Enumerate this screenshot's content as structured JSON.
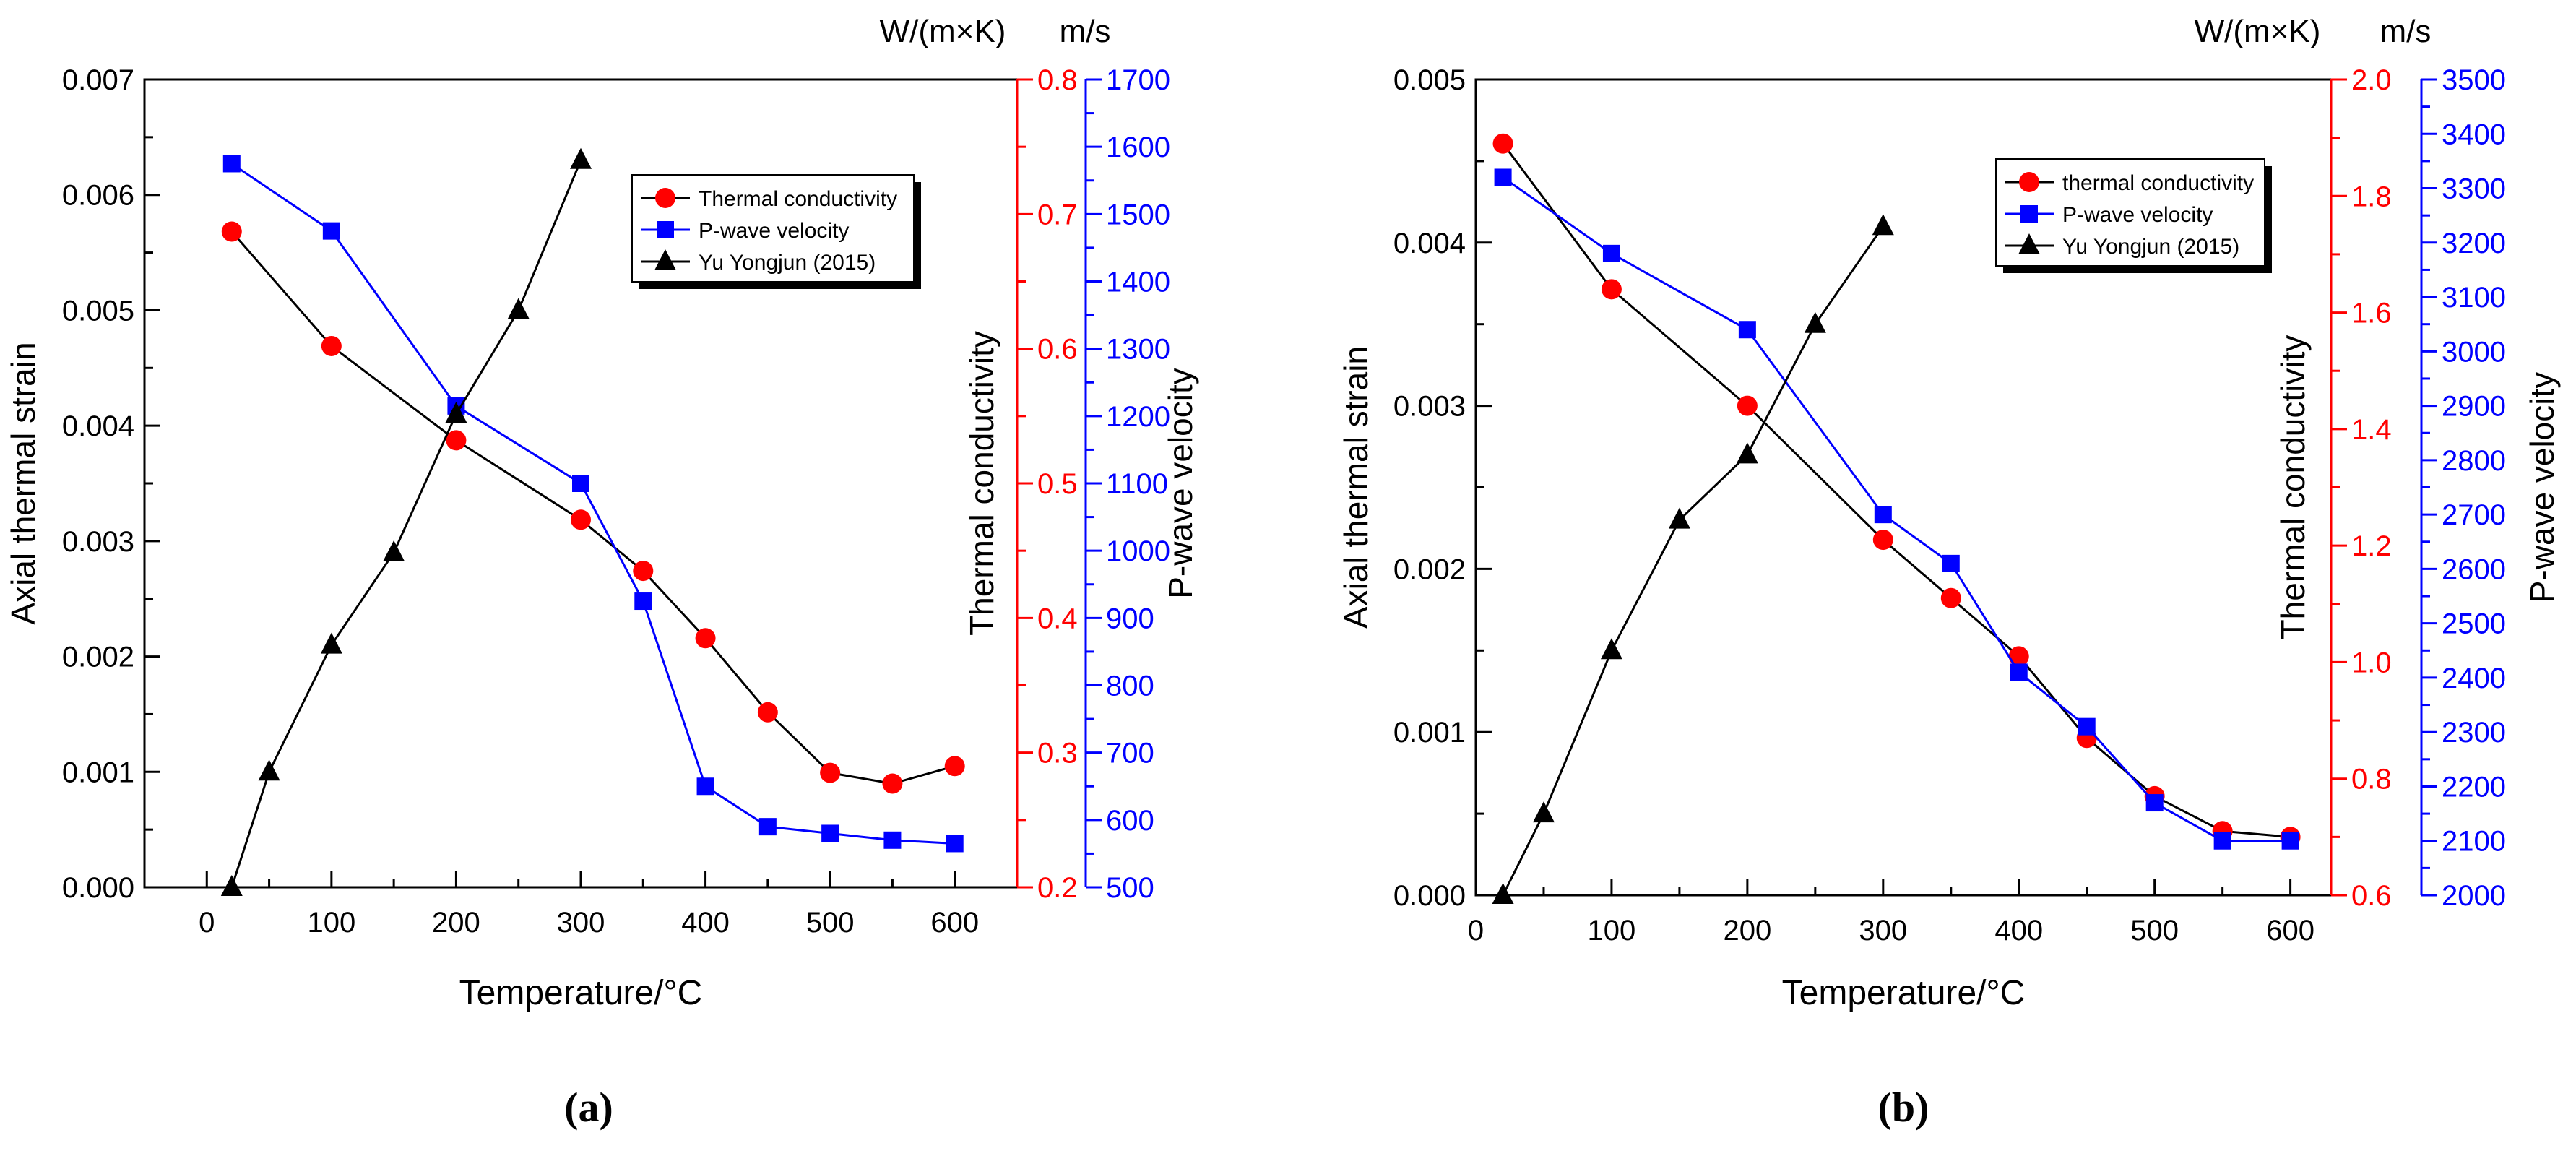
{
  "chart_data": [
    {
      "type": "line",
      "panel_label": "(a)",
      "xlabel": "Temperature/°C",
      "xlim": [
        -50,
        650
      ],
      "xticks": [
        0,
        100,
        200,
        300,
        400,
        500,
        600
      ],
      "axes": {
        "strain": {
          "label": "Axial thermal strain",
          "unit": "",
          "range": [
            0,
            0.007
          ],
          "ticks": [
            "0.000",
            "0.001",
            "0.002",
            "0.003",
            "0.004",
            "0.005",
            "0.006",
            "0.007"
          ],
          "color": "#000000"
        },
        "thermal": {
          "label": "Thermal conductivity",
          "unit": "W/(m×K)",
          "range": [
            0.2,
            0.8
          ],
          "ticks": [
            "0.2",
            "0.3",
            "0.4",
            "0.5",
            "0.6",
            "0.7",
            "0.8"
          ],
          "color": "#ff0000"
        },
        "velocity": {
          "label": "P-wave velocity",
          "unit": "m/s",
          "range": [
            500,
            1700
          ],
          "ticks": [
            "500",
            "600",
            "700",
            "800",
            "900",
            "1000",
            "1100",
            "1200",
            "1300",
            "1400",
            "1500",
            "1600",
            "1700"
          ],
          "color": "#0000ff"
        }
      },
      "series": [
        {
          "name": "Thermal conductivity",
          "axis": "thermal",
          "marker": "circle",
          "line_color": "#000000",
          "marker_color": "#ff0000",
          "x": [
            20,
            100,
            200,
            300,
            350,
            400,
            450,
            500,
            550,
            600
          ],
          "y": [
            0.687,
            0.602,
            0.532,
            0.473,
            0.435,
            0.385,
            0.33,
            0.285,
            0.277,
            0.29
          ]
        },
        {
          "name": "P-wave velocity",
          "axis": "velocity",
          "marker": "square",
          "line_color": "#0000ff",
          "marker_color": "#0000ff",
          "x": [
            20,
            100,
            200,
            300,
            350,
            400,
            450,
            500,
            550,
            600
          ],
          "y": [
            1575,
            1475,
            1215,
            1100,
            925,
            650,
            590,
            580,
            570,
            565
          ]
        },
        {
          "name": "Yu Yongjun (2015)",
          "axis": "strain",
          "marker": "triangle",
          "line_color": "#000000",
          "marker_color": "#000000",
          "x": [
            20,
            50,
            100,
            150,
            200,
            250,
            300
          ],
          "y": [
            0.0,
            0.001,
            0.0021,
            0.0029,
            0.0041,
            0.005,
            0.0063
          ]
        }
      ]
    },
    {
      "type": "line",
      "panel_label": "(b)",
      "xlabel": "Temperature/°C",
      "xlim": [
        0,
        630
      ],
      "xticks": [
        0,
        100,
        200,
        300,
        400,
        500,
        600
      ],
      "axes": {
        "strain": {
          "label": "Axial thermal strain",
          "unit": "",
          "range": [
            0,
            0.005
          ],
          "ticks": [
            "0.000",
            "0.001",
            "0.002",
            "0.003",
            "0.004",
            "0.005"
          ],
          "color": "#000000"
        },
        "thermal": {
          "label": "Thermal conductivity",
          "unit": "W/(m×K)",
          "range": [
            0.6,
            2.0
          ],
          "ticks": [
            "0.6",
            "0.8",
            "1.0",
            "1.2",
            "1.4",
            "1.6",
            "1.8",
            "2.0"
          ],
          "color": "#ff0000"
        },
        "velocity": {
          "label": "P-wave velocity",
          "unit": "m/s",
          "range": [
            2000,
            3500
          ],
          "ticks": [
            "2000",
            "2100",
            "2200",
            "2300",
            "2400",
            "2500",
            "2600",
            "2700",
            "2800",
            "2900",
            "3000",
            "3100",
            "3200",
            "3300",
            "3400",
            "3500"
          ],
          "color": "#0000ff"
        }
      },
      "series": [
        {
          "name": "thermal conductivity",
          "axis": "thermal",
          "marker": "circle",
          "line_color": "#000000",
          "marker_color": "#ff0000",
          "x": [
            20,
            100,
            200,
            300,
            350,
            400,
            450,
            500,
            550,
            600
          ],
          "y": [
            1.89,
            1.64,
            1.44,
            1.21,
            1.11,
            1.01,
            0.87,
            0.77,
            0.71,
            0.7
          ]
        },
        {
          "name": "P-wave velocity",
          "axis": "velocity",
          "marker": "square",
          "line_color": "#0000ff",
          "marker_color": "#0000ff",
          "x": [
            20,
            100,
            200,
            300,
            350,
            400,
            450,
            500,
            550,
            600
          ],
          "y": [
            3320,
            3180,
            3040,
            2700,
            2610,
            2410,
            2310,
            2170,
            2100,
            2100
          ]
        },
        {
          "name": "Yu Yongjun (2015)",
          "axis": "strain",
          "marker": "triangle",
          "line_color": "#000000",
          "marker_color": "#000000",
          "x": [
            20,
            50,
            100,
            150,
            200,
            250,
            300
          ],
          "y": [
            0.0,
            0.0005,
            0.0015,
            0.0023,
            0.0027,
            0.0035,
            0.0041
          ]
        }
      ]
    }
  ]
}
